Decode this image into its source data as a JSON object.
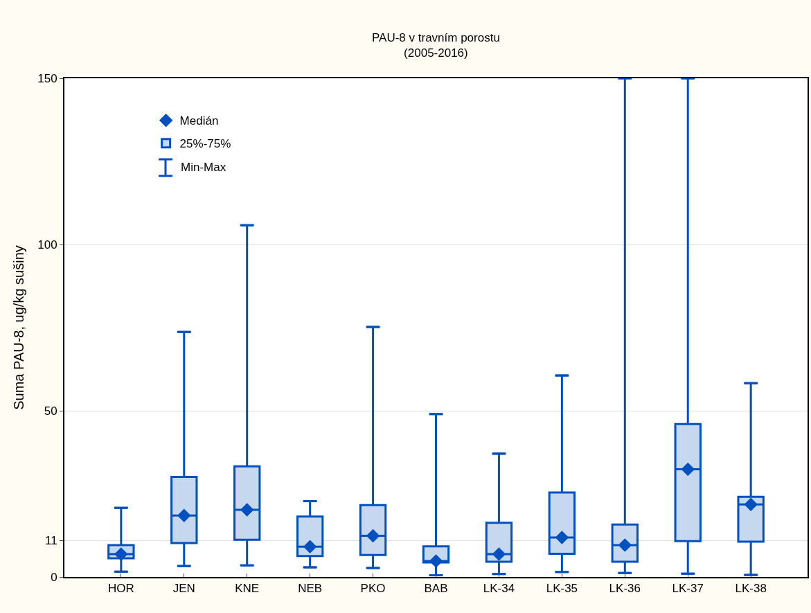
{
  "chart_data": {
    "type": "box",
    "title": "PAU-8 v travním porostu",
    "subtitle": "(2005-2016)",
    "ylabel": "Suma PAU-8, ug/kg sušiny",
    "categories": [
      "HOR",
      "JEN",
      "KNE",
      "NEB",
      "PKO",
      "BAB",
      "LK-34",
      "LK-35",
      "LK-36",
      "LK-37",
      "LK-38"
    ],
    "ylim": [
      0,
      150
    ],
    "yticks": [
      0,
      11,
      50,
      100,
      150
    ],
    "grid": "y",
    "legend": "top left",
    "annotations": [
      "Min-Max"
    ],
    "series": [
      {
        "name": "25%-75%",
        "color": "#0050c0",
        "boxes": [
          {
            "low": 1.6,
            "q1": 5.6,
            "median": 6.9,
            "q3": 9.6,
            "high": 20.8
          },
          {
            "low": 3.3,
            "q1": 10.2,
            "median": 18.5,
            "q3": 30.1,
            "high": 73.7
          },
          {
            "low": 3.5,
            "q1": 11.2,
            "median": 20.2,
            "q3": 33.3,
            "high": 105.8
          },
          {
            "low": 2.9,
            "q1": 6.3,
            "median": 9.1,
            "q3": 18.2,
            "high": 22.8
          },
          {
            "low": 2.7,
            "q1": 6.6,
            "median": 12.4,
            "q3": 21.6,
            "high": 75.2
          },
          {
            "low": 0.5,
            "q1": 4.4,
            "median": 4.8,
            "q3": 9.2,
            "high": 49
          },
          {
            "low": 0.9,
            "q1": 4.6,
            "median": 6.9,
            "q3": 16.3,
            "high": 37.1
          },
          {
            "low": 1.5,
            "q1": 7.0,
            "median": 11.9,
            "q3": 25.4,
            "high": 60.6
          },
          {
            "low": 1.2,
            "q1": 4.6,
            "median": 9.6,
            "q3": 15.8,
            "high": 150
          },
          {
            "low": 1.0,
            "q1": 10.8,
            "median": 32.4,
            "q3": 46,
            "high": 150
          },
          {
            "low": 0.6,
            "q1": 10.6,
            "median": 21.8,
            "q3": 24.1,
            "high": 58.3
          }
        ]
      },
      {
        "name": "Medián",
        "type": "scatter",
        "marker": "diamond",
        "color": "#0050c0",
        "values": [
          6.9,
          18.5,
          20.2,
          9.1,
          12.4,
          4.8,
          6.9,
          11.9,
          9.6,
          32.4,
          21.8
        ]
      }
    ]
  }
}
